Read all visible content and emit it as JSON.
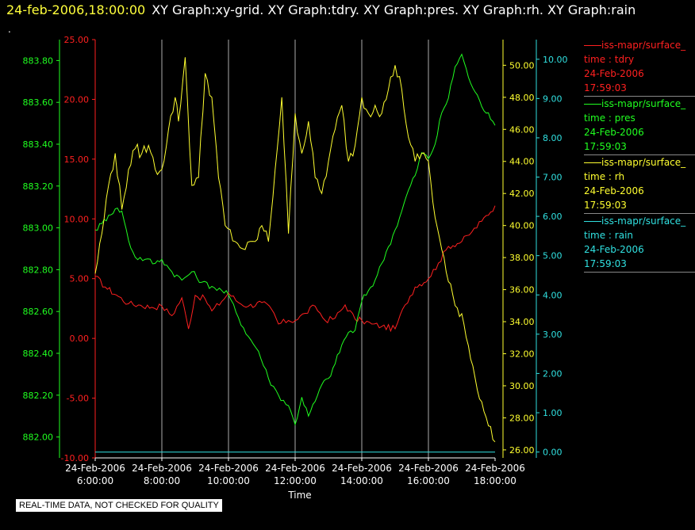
{
  "header": {
    "timestamp": "24-feb-2006,18:00:00",
    "graphs": "XY Graph:xy-grid.  XY Graph:tdry.  XY Graph:pres.  XY Graph:rh.  XY Graph:rain"
  },
  "dot": ".",
  "disclaimer": "REAL-TIME DATA, NOT CHECKED FOR QUALITY",
  "colors": {
    "tdry": "#ff2020",
    "pres": "#20ff20",
    "rh": "#ffff30",
    "rain": "#30e0e0",
    "grid": "#d8d8d8"
  },
  "legend": [
    {
      "source": "iss-mapr/surface_",
      "var": "time : tdry",
      "date": "24-Feb-2006",
      "time": "17:59:03",
      "color": "#ff2020"
    },
    {
      "source": "iss-mapr/surface_",
      "var": "time : pres",
      "date": "24-Feb-2006",
      "time": "17:59:03",
      "color": "#20ff20"
    },
    {
      "source": "iss-mapr/surface_",
      "var": "time : rh",
      "date": "24-Feb-2006",
      "time": "17:59:03",
      "color": "#ffff30"
    },
    {
      "source": "iss-mapr/surface_",
      "var": "time : rain",
      "date": "24-Feb-2006",
      "time": "17:59:03",
      "color": "#30e0e0"
    }
  ],
  "chart_data": {
    "type": "line",
    "xlabel": "Time",
    "x_ticks": [
      {
        "hour": 6,
        "date": "24-Feb-2006",
        "time": "6:00:00"
      },
      {
        "hour": 8,
        "date": "24-Feb-2006",
        "time": "8:00:00"
      },
      {
        "hour": 10,
        "date": "24-Feb-2006",
        "time": "10:00:00"
      },
      {
        "hour": 12,
        "date": "24-Feb-2006",
        "time": "12:00:00"
      },
      {
        "hour": 14,
        "date": "24-Feb-2006",
        "time": "14:00:00"
      },
      {
        "hour": 16,
        "date": "24-Feb-2006",
        "time": "16:00:00"
      },
      {
        "hour": 18,
        "date": "24-Feb-2006",
        "time": "18:00:00"
      }
    ],
    "xlim": [
      6,
      18
    ],
    "grid": true,
    "axes": {
      "tdry": {
        "lim": [
          -10,
          25
        ],
        "ticks": [
          "25.00",
          "20.00",
          "15.00",
          "10.00",
          "5.00",
          "0.00",
          "-5.00",
          "-10.00"
        ]
      },
      "pres": {
        "lim": [
          881.9,
          883.9
        ],
        "ticks": [
          "883.80",
          "883.60",
          "883.40",
          "883.20",
          "883.00",
          "882.80",
          "882.60",
          "882.40",
          "882.20",
          "882.00"
        ]
      },
      "rh": {
        "lim": [
          25.5,
          51.6
        ],
        "ticks": [
          "50.00",
          "48.00",
          "46.00",
          "44.00",
          "42.00",
          "40.00",
          "38.00",
          "36.00",
          "34.00",
          "32.00",
          "30.00",
          "28.00",
          "26.00"
        ]
      },
      "rain": {
        "lim": [
          -0.15,
          10.5
        ],
        "ticks": [
          "10.00",
          "9.00",
          "8.00",
          "7.00",
          "6.00",
          "5.00",
          "4.00",
          "3.00",
          "2.00",
          "1.00",
          "0.00"
        ]
      }
    },
    "series": [
      {
        "name": "tdry",
        "x": [
          6,
          6.3,
          6.7,
          7,
          7.3,
          7.7,
          8,
          8.3,
          8.6,
          8.8,
          9,
          9.3,
          9.5,
          9.8,
          10,
          10.3,
          10.6,
          11,
          11.3,
          11.5,
          11.8,
          12,
          12.3,
          12.6,
          12.9,
          13.2,
          13.5,
          13.8,
          14,
          14.3,
          14.6,
          15,
          15.3,
          15.6,
          16,
          16.3,
          16.6,
          17,
          17.3,
          17.6,
          18
        ],
        "values": [
          5.2,
          4.3,
          3.5,
          2.9,
          2.8,
          2.6,
          2.7,
          1.9,
          3.4,
          0.8,
          3.6,
          3.3,
          2.3,
          3.1,
          3.8,
          3.0,
          2.7,
          3.0,
          2.4,
          1.2,
          1.5,
          1.5,
          2.1,
          2.7,
          1.5,
          1.7,
          2.8,
          1.6,
          1.5,
          1.2,
          1.0,
          0.8,
          2.8,
          4.3,
          5.0,
          6.3,
          7.7,
          8.1,
          8.9,
          9.8,
          11.1
        ]
      },
      {
        "name": "pres",
        "x": [
          6,
          6.2,
          6.4,
          6.6,
          6.8,
          7,
          7.2,
          7.5,
          7.8,
          8,
          8.3,
          8.6,
          8.9,
          9.2,
          9.5,
          9.8,
          10,
          10.3,
          10.6,
          10.9,
          11.2,
          11.5,
          11.8,
          12,
          12.2,
          12.4,
          12.6,
          12.8,
          13,
          13.2,
          13.4,
          13.6,
          13.8,
          14,
          14.2,
          14.4,
          14.6,
          14.8,
          15,
          15.2,
          15.4,
          15.6,
          15.8,
          16,
          16.2,
          16.4,
          16.6,
          16.8,
          17,
          17.2,
          17.4,
          17.6,
          17.8,
          18
        ],
        "values": [
          882.99,
          883.02,
          883.06,
          883.09,
          883.08,
          882.94,
          882.86,
          882.85,
          882.83,
          882.85,
          882.79,
          882.75,
          882.79,
          882.74,
          882.72,
          882.7,
          882.68,
          882.57,
          882.48,
          882.41,
          882.28,
          882.2,
          882.15,
          882.06,
          882.19,
          882.1,
          882.17,
          882.25,
          882.28,
          882.35,
          882.44,
          882.5,
          882.51,
          882.65,
          882.7,
          882.75,
          882.83,
          882.91,
          882.99,
          883.08,
          883.18,
          883.25,
          883.36,
          883.33,
          883.4,
          883.55,
          883.62,
          883.77,
          883.83,
          883.72,
          883.65,
          883.58,
          883.55,
          883.49
        ]
      },
      {
        "name": "rh",
        "x": [
          6,
          6.2,
          6.4,
          6.6,
          6.8,
          7,
          7.2,
          7.4,
          7.6,
          7.8,
          8,
          8.2,
          8.4,
          8.5,
          8.7,
          8.9,
          9.1,
          9.3,
          9.5,
          9.7,
          9.9,
          10.2,
          10.5,
          10.8,
          11,
          11.2,
          11.4,
          11.6,
          11.8,
          12,
          12.2,
          12.4,
          12.6,
          12.8,
          13,
          13.2,
          13.4,
          13.6,
          13.8,
          14,
          14.2,
          14.4,
          14.6,
          14.8,
          15,
          15.2,
          15.4,
          15.6,
          15.8,
          16,
          16.2,
          16.4,
          16.6,
          16.8,
          17,
          17.2,
          17.4,
          17.6,
          17.8,
          18
        ],
        "values": [
          37.0,
          39.5,
          42.5,
          44.5,
          41.0,
          43.5,
          44.8,
          44.5,
          45.0,
          43.5,
          43.5,
          46.0,
          48.0,
          46.5,
          50.5,
          42.5,
          43.0,
          49.5,
          48.0,
          43.0,
          40.0,
          39.0,
          38.5,
          39.0,
          40.0,
          39.0,
          43.5,
          48.0,
          39.5,
          47.0,
          44.5,
          46.5,
          43.0,
          42.0,
          44.0,
          46.0,
          47.5,
          44.0,
          45.0,
          48.0,
          47.0,
          47.5,
          47.0,
          48.5,
          50.0,
          48.5,
          45.5,
          44.0,
          44.5,
          44.0,
          40.5,
          38.5,
          36.5,
          35.0,
          34.5,
          32.5,
          30.5,
          29.0,
          27.5,
          26.5
        ]
      },
      {
        "name": "rain",
        "x": [
          6,
          18
        ],
        "values": [
          0,
          0
        ]
      }
    ]
  }
}
